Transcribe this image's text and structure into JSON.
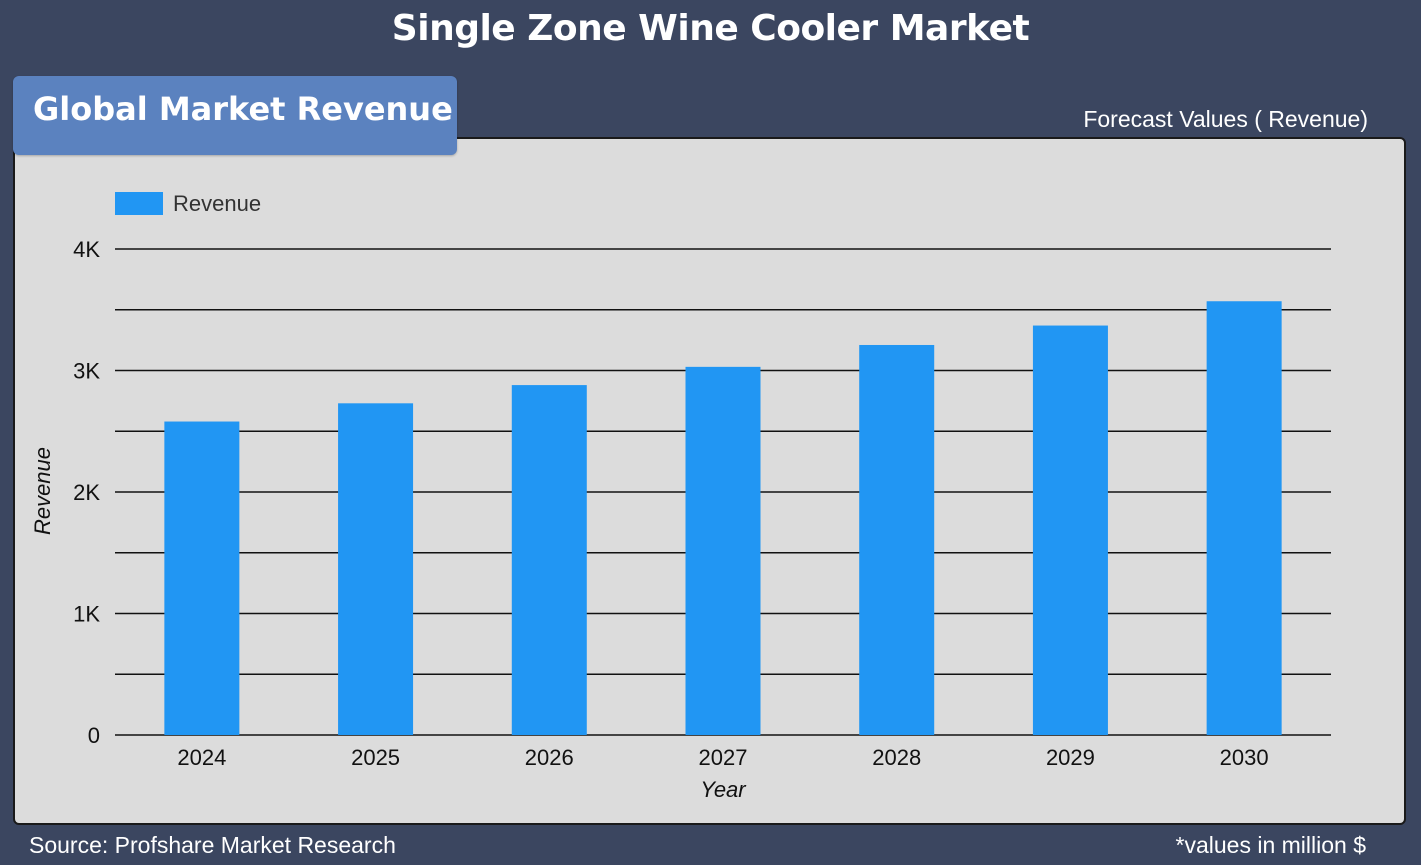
{
  "header": {
    "title": "Single Zone Wine Cooler Market",
    "section_label": "Global Market Revenue",
    "forecast_caption": "Forecast Values ( Revenue)"
  },
  "footer": {
    "source": "Source: Profshare Market Research",
    "unit_note": "*values in million $"
  },
  "colors": {
    "background": "#3b4660",
    "panel": "#dcdcdc",
    "section_tab": "#5b82bf",
    "bar": "#2196f3"
  },
  "chart_data": {
    "type": "bar",
    "categories": [
      "2024",
      "2025",
      "2026",
      "2027",
      "2028",
      "2029",
      "2030"
    ],
    "series": [
      {
        "name": "Revenue",
        "values": [
          2580,
          2730,
          2880,
          3030,
          3210,
          3370,
          3570
        ]
      }
    ],
    "xlabel": "Year",
    "ylabel": "Revenue",
    "ylim": [
      0,
      4000
    ],
    "yticks": [
      0,
      1000,
      2000,
      3000,
      4000
    ],
    "ytick_labels": [
      "0",
      "1K",
      "2K",
      "3K",
      "4K"
    ],
    "grid": true,
    "legend": "top-left"
  }
}
